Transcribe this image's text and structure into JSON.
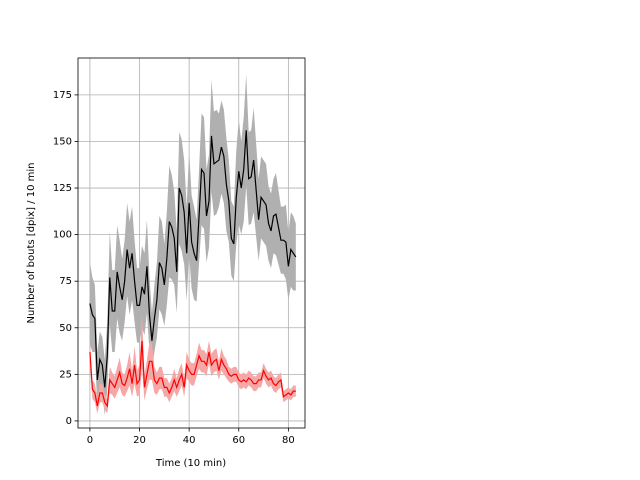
{
  "chart_data": {
    "type": "line",
    "xlabel": "Time (10 min)",
    "ylabel": "Number of bouts [dpix]  / 10 min",
    "x": [
      0,
      1,
      2,
      3,
      4,
      5,
      6,
      7,
      8,
      9,
      10,
      11,
      12,
      13,
      14,
      15,
      16,
      17,
      18,
      19,
      20,
      21,
      22,
      23,
      24,
      25,
      26,
      27,
      28,
      29,
      30,
      31,
      32,
      33,
      34,
      35,
      36,
      37,
      38,
      39,
      40,
      41,
      42,
      43,
      44,
      45,
      46,
      47,
      48,
      49,
      50,
      51,
      52,
      53,
      54,
      55,
      56,
      57,
      58,
      59,
      60,
      61,
      62,
      63,
      64,
      65,
      66,
      67,
      68,
      69,
      70,
      71,
      72,
      73,
      74,
      75,
      76,
      77,
      78,
      79,
      80,
      81,
      82,
      83
    ],
    "series": [
      {
        "color": "#000000",
        "band_color": "#b0b0b0",
        "values": [
          63,
          57,
          55,
          22,
          33,
          30,
          18,
          35,
          77,
          59,
          59,
          80,
          72,
          65,
          75,
          92,
          82,
          90,
          75,
          62,
          62,
          72,
          68,
          83,
          57,
          43,
          55,
          65,
          85,
          82,
          73,
          87,
          107,
          104,
          98,
          80,
          125,
          121,
          112,
          90,
          117,
          96,
          90,
          86,
          110,
          135,
          133,
          110,
          118,
          153,
          138,
          139,
          140,
          147,
          142,
          127,
          118,
          98,
          95,
          120,
          134,
          125,
          135,
          156,
          130,
          131,
          140,
          124,
          108,
          120,
          118,
          116,
          106,
          102,
          110,
          111,
          104,
          97,
          97,
          96,
          83,
          92,
          90,
          88
        ],
        "error": [
          22,
          20,
          18,
          15,
          15,
          15,
          15,
          18,
          25,
          22,
          22,
          25,
          25,
          22,
          22,
          25,
          25,
          25,
          22,
          20,
          20,
          22,
          22,
          25,
          20,
          15,
          18,
          20,
          25,
          25,
          22,
          25,
          30,
          28,
          25,
          22,
          30,
          30,
          28,
          25,
          28,
          25,
          25,
          22,
          25,
          30,
          30,
          25,
          25,
          30,
          28,
          28,
          25,
          25,
          25,
          25,
          22,
          20,
          20,
          25,
          28,
          25,
          28,
          30,
          25,
          25,
          28,
          25,
          22,
          22,
          22,
          22,
          20,
          20,
          20,
          22,
          20,
          18,
          18,
          20,
          18,
          20,
          20,
          18
        ]
      },
      {
        "color": "#ff0000",
        "band_color": "#f4a8a8",
        "values": [
          37,
          17,
          15,
          8,
          15,
          15,
          10,
          8,
          22,
          20,
          18,
          22,
          26,
          20,
          19,
          23,
          28,
          20,
          30,
          20,
          22,
          43,
          18,
          25,
          32,
          32,
          22,
          20,
          23,
          23,
          18,
          18,
          15,
          18,
          22,
          18,
          22,
          25,
          18,
          30,
          27,
          25,
          25,
          30,
          35,
          32,
          32,
          30,
          37,
          30,
          32,
          33,
          27,
          33,
          30,
          28,
          25,
          24,
          25,
          25,
          22,
          21,
          22,
          21,
          23,
          22,
          20,
          20,
          22,
          22,
          27,
          24,
          22,
          23,
          20,
          19,
          21,
          22,
          13,
          14,
          15,
          14,
          16,
          16
        ],
        "error": [
          6,
          5,
          5,
          4,
          5,
          5,
          4,
          4,
          7,
          6,
          6,
          7,
          8,
          6,
          6,
          7,
          9,
          7,
          10,
          7,
          8,
          15,
          7,
          8,
          10,
          10,
          7,
          6,
          6,
          6,
          5,
          5,
          5,
          5,
          6,
          5,
          6,
          6,
          5,
          7,
          6,
          6,
          6,
          6,
          7,
          6,
          6,
          6,
          6,
          6,
          6,
          6,
          5,
          6,
          5,
          5,
          4,
          4,
          4,
          4,
          4,
          4,
          4,
          4,
          4,
          4,
          4,
          4,
          4,
          4,
          4,
          4,
          4,
          4,
          4,
          4,
          4,
          4,
          3,
          3,
          3,
          3,
          3,
          3
        ]
      }
    ],
    "xlim": [
      -4.8,
      86.7
    ],
    "xticks": [
      0,
      20,
      40,
      60,
      80
    ],
    "ylim": [
      -3.8,
      194.8
    ],
    "yticks": [
      0,
      25,
      50,
      75,
      100,
      125,
      150,
      175
    ],
    "grid": true
  }
}
